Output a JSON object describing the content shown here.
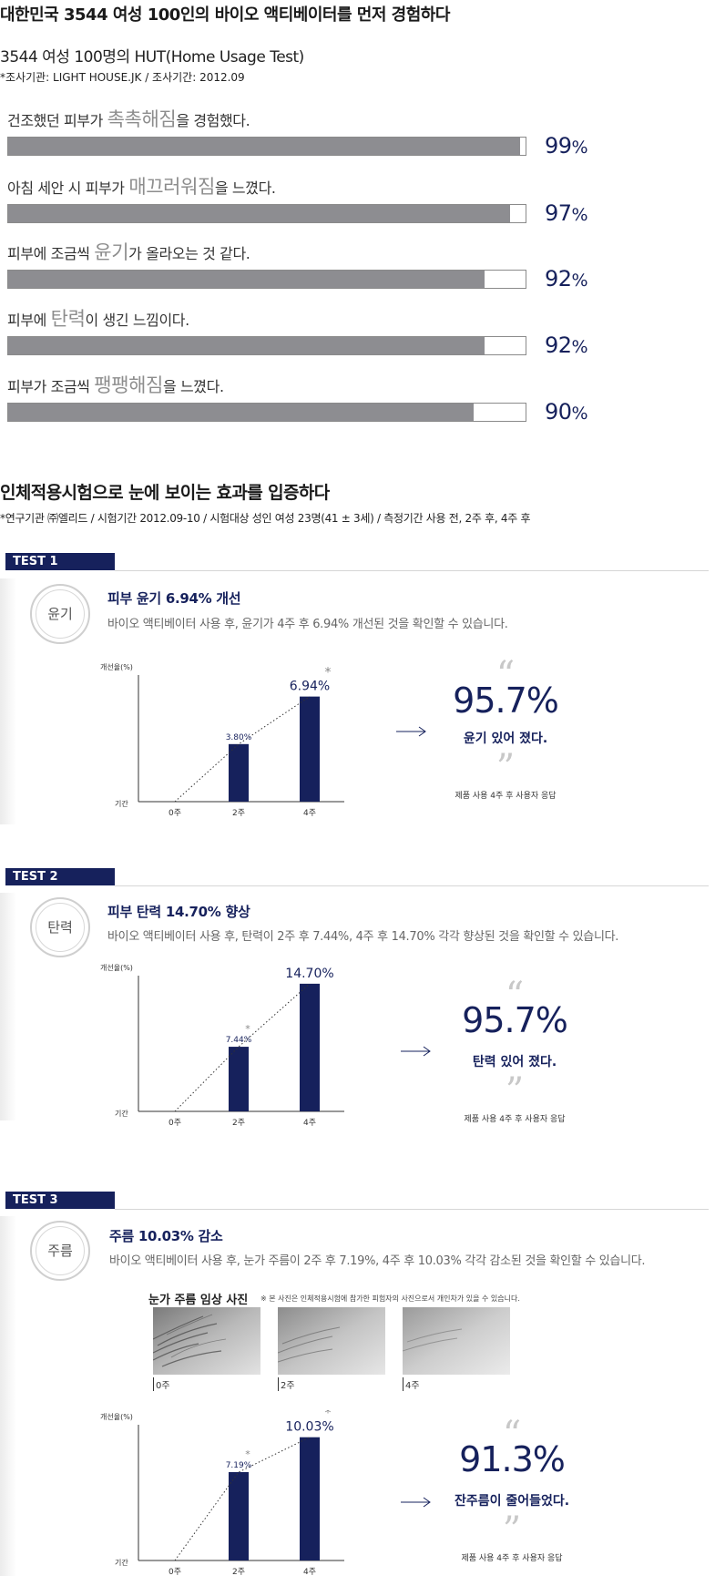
{
  "hut": {
    "title": "대한민국 3544 여성 100인의 바이오 액티베이터를 먼저 경험하다",
    "subtitle": "3544 여성 100명의 HUT(Home Usage Test)",
    "meta": "*조사기관: LIGHT HOUSE.JK / 조사기간: 2012.09",
    "items": [
      {
        "pre": "건조했던 피부가 ",
        "em": "촉촉해짐",
        "post": "을 경험했다.",
        "pct_num": "99",
        "pct_sign": "%",
        "value": 99
      },
      {
        "pre": "아침 세안 시 피부가 ",
        "em": "매끄러워짐",
        "post": "을 느꼈다.",
        "pct_num": "97",
        "pct_sign": "%",
        "value": 97
      },
      {
        "pre": "피부에 조금씩 ",
        "em": "윤기",
        "post": "가 올라오는 것 같다.",
        "pct_num": "92",
        "pct_sign": "%",
        "value": 92
      },
      {
        "pre": "피부에 ",
        "em": "탄력",
        "post": "이 생긴 느낌이다.",
        "pct_num": "92",
        "pct_sign": "%",
        "value": 92
      },
      {
        "pre": "피부가 조금씩 ",
        "em": "팽팽해짐",
        "post": "을 느꼈다.",
        "pct_num": "90",
        "pct_sign": "%",
        "value": 90
      }
    ]
  },
  "clinical": {
    "title": "인체적용시험으로 눈에 보이는 효과를 입증하다",
    "meta": "*연구기관 ㈜엘리드 / 시험기간  2012.09-10 / 시험대상  성인 여성 23명(41 ± 3세) / 측정기간  사용 전, 2주 후, 4주 후"
  },
  "tests": [
    {
      "label": "TEST 1",
      "circle": "윤기",
      "title": "피부 윤기 6.94% 개선",
      "desc": "바이오 액티베이터 사용 후, 윤기가 4주 후 6.94% 개선된 것을 확인할 수 있습니다.",
      "result_pct": "95.7%",
      "result_text": "윤기 있어 졌다.",
      "result_note": "제품 사용 4주 후 사용자 응답",
      "quote_open": "“",
      "quote_close": "”"
    },
    {
      "label": "TEST 2",
      "circle": "탄력",
      "title": "피부 탄력 14.70% 향상",
      "desc": "바이오 액티베이터 사용 후, 탄력이 2주 후 7.44%, 4주 후 14.70% 각각 향상된 것을 확인할 수 있습니다.",
      "result_pct": "95.7%",
      "result_text": "탄력 있어 졌다.",
      "result_note": "제품 사용 4주 후 사용자 응답",
      "quote_open": "“",
      "quote_close": "”"
    },
    {
      "label": "TEST 3",
      "circle": "주름",
      "title": "주름 10.03% 감소",
      "desc": "바이오 액티베이터 사용 후, 눈가 주름이 2주 후 7.19%, 4주 후 10.03% 각각 감소된 것을 확인할 수 있습니다.",
      "result_pct": "91.3%",
      "result_text": "잔주름이 줄어들었다.",
      "result_note": "제품 사용 4주 후 사용자 응답",
      "quote_open": "“",
      "quote_close": "”",
      "photos": {
        "title": "눈가 주름 임상 사진",
        "note": "※ 본 사진은 인체적용시험에 참가한 피험자의 사진으로서 개인차가 있을 수 있습니다.",
        "captions": [
          "0주",
          "2주",
          "4주"
        ]
      }
    }
  ],
  "chart_data": [
    {
      "type": "bar",
      "categories": [
        "0주",
        "2주",
        "4주"
      ],
      "values": [
        0,
        3.8,
        6.94
      ],
      "labels": [
        "",
        "3.80%",
        "6.94%"
      ],
      "asterisks": [
        false,
        false,
        true
      ],
      "ylabel": "개선율(%)",
      "xlabel": "기간",
      "ylim": [
        0,
        8
      ]
    },
    {
      "type": "bar",
      "categories": [
        "0주",
        "2주",
        "4주"
      ],
      "values": [
        0,
        7.44,
        14.7
      ],
      "labels": [
        "",
        "7.44%",
        "14.70%"
      ],
      "asterisks": [
        false,
        true,
        true
      ],
      "ylabel": "개선율(%)",
      "xlabel": "기간",
      "ylim": [
        0,
        15
      ]
    },
    {
      "type": "bar",
      "categories": [
        "0주",
        "2주",
        "4주"
      ],
      "values": [
        0,
        7.19,
        10.03
      ],
      "labels": [
        "",
        "7.19%",
        "10.03%"
      ],
      "asterisks": [
        false,
        true,
        true
      ],
      "ylabel": "개선율(%)",
      "xlabel": "기간",
      "ylim": [
        0,
        10.6
      ]
    }
  ]
}
